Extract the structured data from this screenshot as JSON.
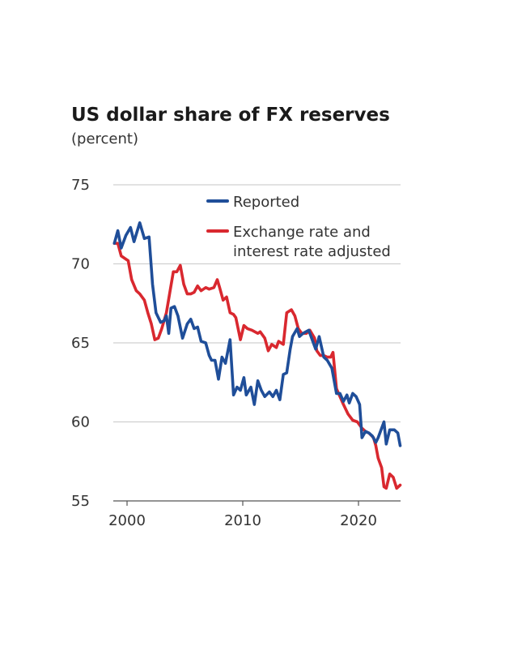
{
  "chart_data": {
    "type": "line",
    "title": "US dollar share of FX reserves",
    "subtitle": "(percent)",
    "xlabel": "",
    "ylabel": "",
    "xlim": [
      1998.8,
      2023.8
    ],
    "ylim": [
      55,
      75
    ],
    "yticks": [
      75,
      70,
      65,
      60,
      55
    ],
    "xticks": [
      2000,
      2010,
      2020
    ],
    "grid": true,
    "legend": "top-right",
    "series": [
      {
        "name": "Reported",
        "color": "#1f4e99",
        "points": [
          [
            1998.9,
            71.3
          ],
          [
            1999.2,
            72.1
          ],
          [
            1999.5,
            71.0
          ],
          [
            1999.9,
            71.8
          ],
          [
            2000.3,
            72.3
          ],
          [
            2000.6,
            71.4
          ],
          [
            2001.1,
            72.6
          ],
          [
            2001.5,
            71.6
          ],
          [
            2001.9,
            71.7
          ],
          [
            2002.2,
            68.7
          ],
          [
            2002.5,
            66.9
          ],
          [
            2002.9,
            66.3
          ],
          [
            2003.2,
            66.4
          ],
          [
            2003.4,
            66.7
          ],
          [
            2003.6,
            65.6
          ],
          [
            2003.8,
            67.2
          ],
          [
            2004.1,
            67.3
          ],
          [
            2004.4,
            66.7
          ],
          [
            2004.8,
            65.3
          ],
          [
            2005.2,
            66.2
          ],
          [
            2005.5,
            66.5
          ],
          [
            2005.8,
            65.9
          ],
          [
            2006.1,
            66.0
          ],
          [
            2006.4,
            65.1
          ],
          [
            2006.8,
            65.0
          ],
          [
            2007.1,
            64.2
          ],
          [
            2007.3,
            63.9
          ],
          [
            2007.6,
            63.9
          ],
          [
            2007.9,
            62.7
          ],
          [
            2008.2,
            64.1
          ],
          [
            2008.5,
            63.7
          ],
          [
            2008.9,
            65.2
          ],
          [
            2009.2,
            61.7
          ],
          [
            2009.5,
            62.2
          ],
          [
            2009.8,
            62.0
          ],
          [
            2010.1,
            62.8
          ],
          [
            2010.3,
            61.7
          ],
          [
            2010.7,
            62.2
          ],
          [
            2011.0,
            61.1
          ],
          [
            2011.3,
            62.6
          ],
          [
            2011.6,
            62.0
          ],
          [
            2011.9,
            61.6
          ],
          [
            2012.3,
            61.9
          ],
          [
            2012.6,
            61.6
          ],
          [
            2012.9,
            62.0
          ],
          [
            2013.2,
            61.4
          ],
          [
            2013.5,
            63.0
          ],
          [
            2013.8,
            63.1
          ],
          [
            2014.1,
            64.6
          ],
          [
            2014.3,
            65.4
          ],
          [
            2014.7,
            65.9
          ],
          [
            2014.9,
            65.4
          ],
          [
            2015.2,
            65.6
          ],
          [
            2015.7,
            65.8
          ],
          [
            2016.0,
            65.2
          ],
          [
            2016.3,
            64.6
          ],
          [
            2016.6,
            65.4
          ],
          [
            2017.0,
            64.1
          ],
          [
            2017.3,
            63.9
          ],
          [
            2017.7,
            63.4
          ],
          [
            2018.1,
            61.8
          ],
          [
            2018.4,
            61.8
          ],
          [
            2018.7,
            61.3
          ],
          [
            2019.0,
            61.7
          ],
          [
            2019.2,
            61.2
          ],
          [
            2019.5,
            61.8
          ],
          [
            2019.8,
            61.6
          ],
          [
            2020.1,
            61.1
          ],
          [
            2020.3,
            59.0
          ],
          [
            2020.6,
            59.4
          ],
          [
            2020.9,
            59.3
          ],
          [
            2021.2,
            59.1
          ],
          [
            2021.5,
            58.7
          ],
          [
            2021.7,
            59.0
          ],
          [
            2022.2,
            60.0
          ],
          [
            2022.4,
            58.6
          ],
          [
            2022.7,
            59.5
          ],
          [
            2023.1,
            59.5
          ],
          [
            2023.4,
            59.3
          ],
          [
            2023.6,
            58.5
          ]
        ]
      },
      {
        "name": "Exchange rate and interest rate adjusted",
        "name_lines": [
          "Exchange rate and",
          "interest rate adjusted"
        ],
        "color": "#d9282f",
        "points": [
          [
            1998.9,
            71.3
          ],
          [
            1999.2,
            71.3
          ],
          [
            1999.5,
            70.5
          ],
          [
            1999.9,
            70.3
          ],
          [
            2000.1,
            70.2
          ],
          [
            2000.4,
            69.0
          ],
          [
            2000.8,
            68.3
          ],
          [
            2001.1,
            68.1
          ],
          [
            2001.5,
            67.7
          ],
          [
            2001.8,
            66.9
          ],
          [
            2002.1,
            66.2
          ],
          [
            2002.4,
            65.2
          ],
          [
            2002.7,
            65.3
          ],
          [
            2003.0,
            65.9
          ],
          [
            2003.4,
            66.9
          ],
          [
            2003.7,
            68.2
          ],
          [
            2004.0,
            69.5
          ],
          [
            2004.3,
            69.5
          ],
          [
            2004.6,
            69.9
          ],
          [
            2004.9,
            68.7
          ],
          [
            2005.2,
            68.1
          ],
          [
            2005.5,
            68.1
          ],
          [
            2005.8,
            68.2
          ],
          [
            2006.1,
            68.6
          ],
          [
            2006.4,
            68.3
          ],
          [
            2006.8,
            68.5
          ],
          [
            2007.1,
            68.4
          ],
          [
            2007.5,
            68.5
          ],
          [
            2007.8,
            69.0
          ],
          [
            2008.0,
            68.5
          ],
          [
            2008.3,
            67.7
          ],
          [
            2008.6,
            67.9
          ],
          [
            2008.9,
            66.9
          ],
          [
            2009.2,
            66.8
          ],
          [
            2009.4,
            66.6
          ],
          [
            2009.8,
            65.2
          ],
          [
            2010.1,
            66.1
          ],
          [
            2010.4,
            65.9
          ],
          [
            2010.8,
            65.8
          ],
          [
            2011.3,
            65.6
          ],
          [
            2011.5,
            65.7
          ],
          [
            2011.9,
            65.3
          ],
          [
            2012.2,
            64.5
          ],
          [
            2012.5,
            64.9
          ],
          [
            2012.9,
            64.7
          ],
          [
            2013.1,
            65.1
          ],
          [
            2013.5,
            64.9
          ],
          [
            2013.8,
            66.9
          ],
          [
            2014.2,
            67.1
          ],
          [
            2014.5,
            66.7
          ],
          [
            2014.8,
            65.9
          ],
          [
            2015.1,
            65.6
          ],
          [
            2015.5,
            65.6
          ],
          [
            2015.8,
            65.8
          ],
          [
            2016.2,
            65.3
          ],
          [
            2016.4,
            64.5
          ],
          [
            2016.7,
            64.2
          ],
          [
            2017.0,
            64.2
          ],
          [
            2017.3,
            64.1
          ],
          [
            2017.6,
            64.1
          ],
          [
            2017.8,
            64.4
          ],
          [
            2018.1,
            62.1
          ],
          [
            2018.4,
            61.6
          ],
          [
            2018.7,
            61.1
          ],
          [
            2019.1,
            60.5
          ],
          [
            2019.5,
            60.1
          ],
          [
            2019.9,
            60.0
          ],
          [
            2020.3,
            59.6
          ],
          [
            2020.6,
            59.4
          ],
          [
            2020.9,
            59.3
          ],
          [
            2021.3,
            59.0
          ],
          [
            2021.5,
            58.5
          ],
          [
            2021.7,
            57.7
          ],
          [
            2022.0,
            57.1
          ],
          [
            2022.2,
            55.9
          ],
          [
            2022.4,
            55.8
          ],
          [
            2022.7,
            56.7
          ],
          [
            2023.0,
            56.5
          ],
          [
            2023.3,
            55.8
          ],
          [
            2023.6,
            56.0
          ]
        ]
      }
    ]
  }
}
